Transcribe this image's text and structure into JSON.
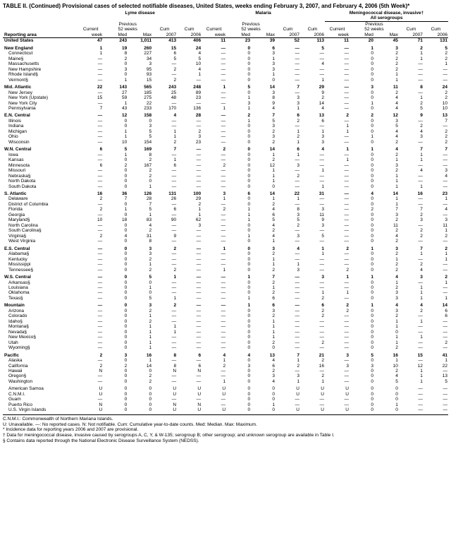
{
  "title": "TABLE II. (Continued) Provisional cases of selected notifiable diseases, United States, weeks ending February 3, 2007, and February 4, 2006 (5th Week)*",
  "diseases": [
    "Lyme disease",
    "Malaria",
    "Meningococcal disease, invasive†"
  ],
  "subhead_right": "All serogroups",
  "col_groups": {
    "previous": "Previous",
    "weeks": "52 weeks"
  },
  "cols": [
    "Reporting area",
    "Current week",
    "Med",
    "Max",
    "Cum 2007",
    "Cum 2006",
    "Current week",
    "Med",
    "Max",
    "Cum 2007",
    "Cum 2006",
    "Current week",
    "Med",
    "Max",
    "Cum 2007",
    "Cum 2006"
  ],
  "rows": [
    {
      "t": "region",
      "c": [
        "United States",
        "47",
        "243",
        "1,011",
        "413",
        "406",
        "11",
        "23",
        "39",
        "52",
        "113",
        "11",
        "20",
        "45",
        "71",
        "131"
      ]
    },
    {
      "t": "spacer"
    },
    {
      "t": "region",
      "c": [
        "New England",
        "1",
        "19",
        "260",
        "15",
        "24",
        "—",
        "0",
        "6",
        "—",
        "5",
        "—",
        "1",
        "3",
        "2",
        "5"
      ]
    },
    {
      "t": "state",
      "c": [
        "Connecticut",
        "1",
        "8",
        "227",
        "6",
        "4",
        "—",
        "0",
        "3",
        "—",
        "—",
        "—",
        "0",
        "2",
        "1",
        "2"
      ]
    },
    {
      "t": "state",
      "c": [
        "Maine§",
        "—",
        "2",
        "34",
        "5",
        "5",
        "—",
        "0",
        "1",
        "—",
        "—",
        "—",
        "0",
        "2",
        "1",
        "2"
      ]
    },
    {
      "t": "state",
      "c": [
        "Massachusetts",
        "—",
        "0",
        "3",
        "—",
        "10",
        "—",
        "0",
        "3",
        "—",
        "4",
        "—",
        "0",
        "2",
        "—",
        "1"
      ]
    },
    {
      "t": "state",
      "c": [
        "New Hampshire",
        "—",
        "3",
        "95",
        "2",
        "4",
        "—",
        "0",
        "3",
        "—",
        "—",
        "—",
        "0",
        "2",
        "—",
        "—"
      ]
    },
    {
      "t": "state",
      "c": [
        "Rhode Island§",
        "—",
        "0",
        "93",
        "—",
        "1",
        "—",
        "0",
        "1",
        "—",
        "—",
        "—",
        "0",
        "1",
        "—",
        "—"
      ]
    },
    {
      "t": "state",
      "c": [
        "Vermont§",
        "—",
        "1",
        "15",
        "2",
        "—",
        "—",
        "0",
        "0",
        "—",
        "1",
        "—",
        "0",
        "1",
        "—",
        "—"
      ]
    },
    {
      "t": "spacer"
    },
    {
      "t": "region",
      "c": [
        "Mid. Atlantic",
        "22",
        "143",
        "565",
        "243",
        "248",
        "1",
        "5",
        "14",
        "7",
        "29",
        "—",
        "3",
        "11",
        "8",
        "24"
      ]
    },
    {
      "t": "state",
      "c": [
        "New Jersey",
        "—",
        "27",
        "185",
        "25",
        "89",
        "—",
        "0",
        "3",
        "—",
        "9",
        "—",
        "0",
        "2",
        "—",
        "2"
      ]
    },
    {
      "t": "state",
      "c": [
        "New York (Upstate)",
        "15",
        "59",
        "275",
        "48",
        "23",
        "—",
        "1",
        "8",
        "3",
        "2",
        "—",
        "0",
        "4",
        "1",
        "2"
      ]
    },
    {
      "t": "state",
      "c": [
        "New York City",
        "—",
        "1",
        "22",
        "—",
        "—",
        "—",
        "3",
        "9",
        "3",
        "14",
        "—",
        "1",
        "4",
        "2",
        "10"
      ]
    },
    {
      "t": "state",
      "c": [
        "Pennsylvania",
        "7",
        "43",
        "233",
        "170",
        "136",
        "1",
        "1",
        "4",
        "1",
        "4",
        "—",
        "0",
        "4",
        "5",
        "10"
      ]
    },
    {
      "t": "spacer"
    },
    {
      "t": "region",
      "c": [
        "E.N. Central",
        "—",
        "12",
        "158",
        "4",
        "28",
        "—",
        "2",
        "7",
        "6",
        "13",
        "2",
        "2",
        "12",
        "9",
        "13"
      ]
    },
    {
      "t": "state",
      "c": [
        "Illinois",
        "—",
        "0",
        "0",
        "—",
        "—",
        "—",
        "1",
        "5",
        "2",
        "6",
        "—",
        "0",
        "3",
        "—",
        "7"
      ]
    },
    {
      "t": "state",
      "c": [
        "Indiana",
        "—",
        "0",
        "3",
        "—",
        "—",
        "—",
        "0",
        "3",
        "—",
        "—",
        "1",
        "0",
        "5",
        "2",
        "—"
      ]
    },
    {
      "t": "state",
      "c": [
        "Michigan",
        "—",
        "1",
        "5",
        "1",
        "2",
        "—",
        "0",
        "2",
        "1",
        "1",
        "1",
        "0",
        "4",
        "4",
        "2"
      ]
    },
    {
      "t": "state",
      "c": [
        "Ohio",
        "—",
        "1",
        "5",
        "1",
        "3",
        "—",
        "0",
        "3",
        "2",
        "3",
        "—",
        "1",
        "4",
        "3",
        "2"
      ]
    },
    {
      "t": "state",
      "c": [
        "Wisconsin",
        "—",
        "10",
        "154",
        "2",
        "23",
        "—",
        "0",
        "2",
        "1",
        "3",
        "—",
        "0",
        "2",
        "—",
        "2"
      ]
    },
    {
      "t": "spacer"
    },
    {
      "t": "region",
      "c": [
        "W.N. Central",
        "6",
        "5",
        "169",
        "7",
        "—",
        "2",
        "0",
        "14",
        "6",
        "4",
        "1",
        "1",
        "4",
        "7",
        "7"
      ]
    },
    {
      "t": "state",
      "c": [
        "Iowa",
        "—",
        "1",
        "8",
        "—",
        "—",
        "—",
        "0",
        "1",
        "1",
        "—",
        "—",
        "0",
        "2",
        "1",
        "—"
      ]
    },
    {
      "t": "state",
      "c": [
        "Kansas",
        "—",
        "0",
        "2",
        "1",
        "—",
        "—",
        "0",
        "2",
        "—",
        "—",
        "1",
        "0",
        "1",
        "1",
        "—"
      ]
    },
    {
      "t": "state",
      "c": [
        "Minnesota",
        "6",
        "2",
        "167",
        "6",
        "—",
        "2",
        "0",
        "12",
        "3",
        "—",
        "—",
        "0",
        "3",
        "—",
        "—"
      ]
    },
    {
      "t": "state",
      "c": [
        "Missouri",
        "—",
        "0",
        "2",
        "—",
        "—",
        "—",
        "0",
        "1",
        "—",
        "1",
        "—",
        "0",
        "2",
        "4",
        "3"
      ]
    },
    {
      "t": "state",
      "c": [
        "Nebraska§",
        "—",
        "0",
        "2",
        "—",
        "—",
        "—",
        "0",
        "1",
        "2",
        "—",
        "—",
        "0",
        "1",
        "—",
        "4"
      ]
    },
    {
      "t": "state",
      "c": [
        "North Dakota",
        "—",
        "0",
        "0",
        "—",
        "—",
        "—",
        "0",
        "1",
        "—",
        "—",
        "—",
        "0",
        "1",
        "—",
        "—"
      ]
    },
    {
      "t": "state",
      "c": [
        "South Dakota",
        "—",
        "0",
        "1",
        "—",
        "—",
        "—",
        "0",
        "0",
        "—",
        "1",
        "—",
        "0",
        "1",
        "1",
        "—"
      ]
    },
    {
      "t": "spacer"
    },
    {
      "t": "region",
      "c": [
        "S. Atlantic",
        "16",
        "36",
        "126",
        "131",
        "100",
        "3",
        "6",
        "14",
        "22",
        "31",
        "—",
        "4",
        "14",
        "16",
        "23"
      ]
    },
    {
      "t": "state",
      "c": [
        "Delaware",
        "2",
        "7",
        "28",
        "26",
        "29",
        "1",
        "0",
        "1",
        "1",
        "—",
        "—",
        "0",
        "1",
        "—",
        "1"
      ]
    },
    {
      "t": "state",
      "c": [
        "District of Columbia",
        "—",
        "0",
        "7",
        "—",
        "2",
        "—",
        "0",
        "2",
        "—",
        "—",
        "—",
        "0",
        "1",
        "—",
        "—"
      ]
    },
    {
      "t": "state",
      "c": [
        "Florida",
        "2",
        "1",
        "5",
        "6",
        "1",
        "2",
        "1",
        "4",
        "8",
        "3",
        "—",
        "2",
        "7",
        "7",
        "4"
      ]
    },
    {
      "t": "state",
      "c": [
        "Georgia",
        "—",
        "0",
        "1",
        "—",
        "1",
        "—",
        "1",
        "6",
        "3",
        "11",
        "—",
        "0",
        "3",
        "2",
        "—"
      ]
    },
    {
      "t": "state",
      "c": [
        "Maryland§",
        "10",
        "18",
        "83",
        "90",
        "62",
        "—",
        "1",
        "5",
        "5",
        "9",
        "—",
        "0",
        "2",
        "3",
        "3"
      ]
    },
    {
      "t": "state",
      "c": [
        "North Carolina",
        "—",
        "0",
        "4",
        "—",
        "3",
        "—",
        "0",
        "4",
        "2",
        "3",
        "—",
        "0",
        "11",
        "—",
        "11"
      ]
    },
    {
      "t": "state",
      "c": [
        "South Carolina§",
        "—",
        "0",
        "2",
        "—",
        "—",
        "—",
        "0",
        "2",
        "—",
        "—",
        "—",
        "0",
        "2",
        "2",
        "1"
      ]
    },
    {
      "t": "state",
      "c": [
        "Virginia§",
        "2",
        "4",
        "31",
        "9",
        "—",
        "—",
        "1",
        "4",
        "3",
        "5",
        "—",
        "0",
        "4",
        "2",
        "2"
      ]
    },
    {
      "t": "state",
      "c": [
        "West Virginia",
        "—",
        "0",
        "8",
        "—",
        "—",
        "—",
        "0",
        "1",
        "—",
        "—",
        "—",
        "0",
        "2",
        "—",
        "—"
      ]
    },
    {
      "t": "spacer"
    },
    {
      "t": "region",
      "c": [
        "E.S. Central",
        "—",
        "0",
        "3",
        "2",
        "—",
        "1",
        "0",
        "3",
        "4",
        "1",
        "2",
        "1",
        "3",
        "7",
        "2"
      ]
    },
    {
      "t": "state",
      "c": [
        "Alabama§",
        "—",
        "0",
        "3",
        "—",
        "—",
        "—",
        "0",
        "2",
        "—",
        "1",
        "—",
        "0",
        "2",
        "1",
        "1"
      ]
    },
    {
      "t": "state",
      "c": [
        "Kentucky",
        "—",
        "0",
        "2",
        "—",
        "—",
        "—",
        "0",
        "1",
        "—",
        "—",
        "—",
        "0",
        "1",
        "—",
        "1"
      ]
    },
    {
      "t": "state",
      "c": [
        "Mississippi",
        "—",
        "0",
        "1",
        "—",
        "—",
        "—",
        "0",
        "1",
        "1",
        "—",
        "—",
        "0",
        "2",
        "2",
        "—"
      ]
    },
    {
      "t": "state",
      "c": [
        "Tennessee§",
        "—",
        "0",
        "2",
        "2",
        "—",
        "1",
        "0",
        "2",
        "3",
        "—",
        "2",
        "0",
        "2",
        "4",
        "—"
      ]
    },
    {
      "t": "spacer"
    },
    {
      "t": "region",
      "c": [
        "W.S. Central",
        "—",
        "0",
        "5",
        "1",
        "—",
        "—",
        "1",
        "7",
        "—",
        "3",
        "1",
        "1",
        "4",
        "3",
        "2"
      ]
    },
    {
      "t": "state",
      "c": [
        "Arkansas§",
        "—",
        "0",
        "0",
        "—",
        "—",
        "—",
        "0",
        "2",
        "—",
        "—",
        "—",
        "0",
        "1",
        "—",
        "1"
      ]
    },
    {
      "t": "state",
      "c": [
        "Louisiana",
        "—",
        "0",
        "1",
        "—",
        "—",
        "—",
        "0",
        "1",
        "—",
        "—",
        "—",
        "0",
        "2",
        "1",
        "—"
      ]
    },
    {
      "t": "state",
      "c": [
        "Oklahoma",
        "—",
        "0",
        "0",
        "—",
        "—",
        "—",
        "0",
        "2",
        "—",
        "1",
        "1",
        "0",
        "3",
        "1",
        "—"
      ]
    },
    {
      "t": "state",
      "c": [
        "Texas§",
        "—",
        "0",
        "5",
        "1",
        "—",
        "—",
        "1",
        "6",
        "—",
        "2",
        "—",
        "0",
        "3",
        "1",
        "1"
      ]
    },
    {
      "t": "spacer"
    },
    {
      "t": "region",
      "c": [
        "Mountain",
        "—",
        "0",
        "3",
        "2",
        "—",
        "—",
        "1",
        "6",
        "—",
        "6",
        "2",
        "1",
        "4",
        "4",
        "14"
      ]
    },
    {
      "t": "state",
      "c": [
        "Arizona",
        "—",
        "0",
        "2",
        "—",
        "—",
        "—",
        "0",
        "3",
        "—",
        "2",
        "2",
        "0",
        "3",
        "2",
        "6"
      ]
    },
    {
      "t": "state",
      "c": [
        "Colorado",
        "—",
        "0",
        "1",
        "—",
        "—",
        "—",
        "0",
        "2",
        "—",
        "2",
        "—",
        "0",
        "2",
        "—",
        "6"
      ]
    },
    {
      "t": "state",
      "c": [
        "Idaho§",
        "—",
        "0",
        "2",
        "—",
        "—",
        "—",
        "0",
        "1",
        "—",
        "—",
        "—",
        "0",
        "1",
        "1",
        "—"
      ]
    },
    {
      "t": "state",
      "c": [
        "Montana§",
        "—",
        "0",
        "1",
        "1",
        "—",
        "—",
        "0",
        "1",
        "—",
        "—",
        "—",
        "0",
        "1",
        "—",
        "—"
      ]
    },
    {
      "t": "state",
      "c": [
        "Nevada§",
        "—",
        "0",
        "1",
        "1",
        "—",
        "—",
        "0",
        "1",
        "—",
        "—",
        "—",
        "0",
        "0",
        "—",
        "—"
      ]
    },
    {
      "t": "state",
      "c": [
        "New Mexico§",
        "—",
        "0",
        "1",
        "—",
        "—",
        "—",
        "0",
        "1",
        "—",
        "—",
        "—",
        "0",
        "1",
        "1",
        "—"
      ]
    },
    {
      "t": "state",
      "c": [
        "Utah",
        "—",
        "0",
        "1",
        "—",
        "—",
        "—",
        "0",
        "2",
        "—",
        "2",
        "—",
        "0",
        "1",
        "—",
        "2"
      ]
    },
    {
      "t": "state",
      "c": [
        "Wyoming§",
        "—",
        "0",
        "1",
        "—",
        "—",
        "—",
        "0",
        "0",
        "—",
        "—",
        "—",
        "0",
        "2",
        "—",
        "—"
      ]
    },
    {
      "t": "spacer"
    },
    {
      "t": "region",
      "c": [
        "Pacific",
        "2",
        "3",
        "16",
        "8",
        "6",
        "4",
        "4",
        "13",
        "7",
        "21",
        "3",
        "5",
        "16",
        "15",
        "41"
      ]
    },
    {
      "t": "state",
      "c": [
        "Alaska",
        "—",
        "0",
        "1",
        "—",
        "—",
        "1",
        "0",
        "4",
        "1",
        "2",
        "—",
        "0",
        "1",
        "—",
        "1"
      ]
    },
    {
      "t": "state",
      "c": [
        "California",
        "2",
        "2",
        "14",
        "8",
        "6",
        "2",
        "3",
        "6",
        "2",
        "16",
        "3",
        "3",
        "10",
        "12",
        "22"
      ]
    },
    {
      "t": "state",
      "c": [
        "Hawaii",
        "N",
        "0",
        "0",
        "N",
        "N",
        "—",
        "0",
        "2",
        "—",
        "—",
        "—",
        "0",
        "2",
        "1",
        "—"
      ]
    },
    {
      "t": "state",
      "c": [
        "Oregon§",
        "—",
        "0",
        "2",
        "—",
        "—",
        "—",
        "0",
        "3",
        "3",
        "2",
        "—",
        "0",
        "4",
        "1",
        "13"
      ]
    },
    {
      "t": "state",
      "c": [
        "Washington",
        "—",
        "0",
        "2",
        "—",
        "—",
        "1",
        "0",
        "4",
        "1",
        "1",
        "—",
        "0",
        "5",
        "1",
        "5"
      ]
    },
    {
      "t": "spacer"
    },
    {
      "t": "state",
      "c": [
        "American Samoa",
        "U",
        "0",
        "0",
        "U",
        "U",
        "U",
        "0",
        "0",
        "U",
        "U",
        "U",
        "0",
        "0",
        "—",
        "—"
      ]
    },
    {
      "t": "state",
      "c": [
        "C.N.M.I.",
        "U",
        "0",
        "0",
        "U",
        "U",
        "U",
        "0",
        "0",
        "U",
        "U",
        "U",
        "0",
        "0",
        "—",
        "—"
      ]
    },
    {
      "t": "state",
      "c": [
        "Guam",
        "—",
        "0",
        "0",
        "—",
        "—",
        "—",
        "0",
        "0",
        "—",
        "—",
        "—",
        "0",
        "0",
        "—",
        "—"
      ]
    },
    {
      "t": "state",
      "c": [
        "Puerto Rico",
        "N",
        "0",
        "0",
        "N",
        "N",
        "—",
        "0",
        "1",
        "—",
        "—",
        "—",
        "0",
        "1",
        "—",
        "—"
      ]
    },
    {
      "t": "state",
      "c": [
        "U.S. Virgin Islands",
        "U",
        "0",
        "0",
        "U",
        "U",
        "U",
        "0",
        "0",
        "U",
        "U",
        "U",
        "0",
        "0",
        "—",
        "—"
      ]
    }
  ],
  "footnotes": [
    "C.N.M.I.: Commonwealth of Northern Mariana Islands.",
    "U: Unavailable.    —: No reported cases.    N: Not notifiable.    Cum: Cumulative year-to-date counts.    Med: Median.    Max: Maximum.",
    "* Incidence data for reporting years 2006 and 2007 are provisional.",
    "† Data for meningococcal disease, invasive caused by serogroups A, C, Y, & W-135; serogroup B; other serogroup; and unknown serogroup are available in Table I.",
    "§ Contains data reported through the National Electronic Disease Surveillance System (NEDSS)."
  ]
}
